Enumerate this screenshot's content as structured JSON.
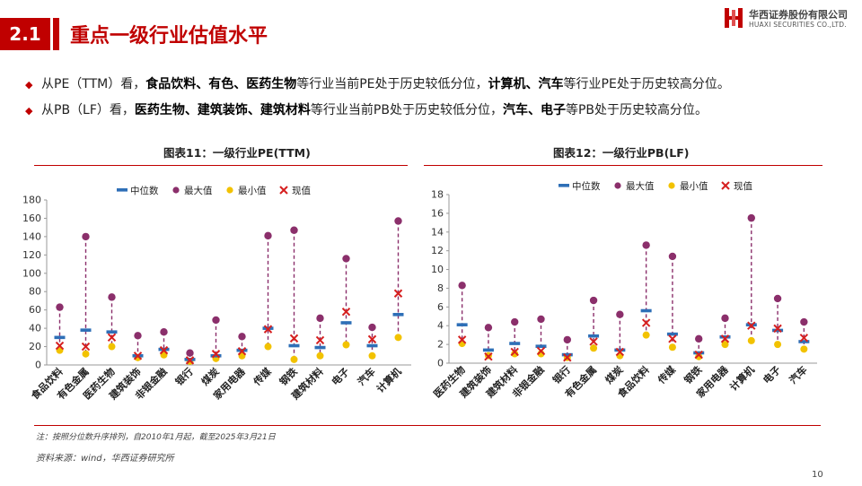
{
  "header": {
    "section_number": "2.1",
    "title": "重点一级行业估值水平",
    "logo_cn": "华西证券股份有限公司",
    "logo_en": "HUAXI SECURITIES CO.,LTD."
  },
  "bullets": [
    [
      {
        "t": "从PE（TTM）看，",
        "b": false
      },
      {
        "t": "食品饮料、有色、医药生物",
        "b": true
      },
      {
        "t": "等行业当前PE处于历史较低分位，",
        "b": false
      },
      {
        "t": "计算机、汽车",
        "b": true
      },
      {
        "t": "等行业PE处于历史较高分位。",
        "b": false
      }
    ],
    [
      {
        "t": "从PB（LF）看，",
        "b": false
      },
      {
        "t": "医药生物、建筑装饰、建筑材料",
        "b": true
      },
      {
        "t": "等行业当前PB处于历史较低分位，",
        "b": false
      },
      {
        "t": "汽车、电子",
        "b": true
      },
      {
        "t": "等PB处于历史较高分位。",
        "b": false
      }
    ]
  ],
  "legend_labels": [
    "中位数",
    "最大值",
    "最小值",
    "现值"
  ],
  "colors": {
    "median": "#2e6fb7",
    "max": "#8b2f6b",
    "min": "#f2c200",
    "current": "#d62020",
    "accent": "#c00000"
  },
  "chart_data": [
    {
      "type": "scatter",
      "title": "图表11：一级行业PE(TTM)",
      "legend_position": "top",
      "ylim": [
        0,
        180
      ],
      "yticks": [
        0,
        20,
        40,
        60,
        80,
        100,
        120,
        140,
        160,
        180
      ],
      "categories": [
        "食品饮料",
        "有色金属",
        "医药生物",
        "建筑装饰",
        "非银金融",
        "银行",
        "煤炭",
        "家用电器",
        "传媒",
        "钢铁",
        "建筑材料",
        "电子",
        "汽车",
        "计算机"
      ],
      "series": [
        {
          "name": "中位数",
          "values": [
            30,
            38,
            36,
            10,
            17,
            6,
            10,
            16,
            40,
            21,
            19,
            46,
            21,
            55
          ]
        },
        {
          "name": "最大值",
          "values": [
            63,
            140,
            74,
            32,
            36,
            13,
            49,
            31,
            141,
            147,
            51,
            116,
            41,
            157
          ]
        },
        {
          "name": "最小值",
          "values": [
            16,
            12,
            20,
            8,
            11,
            4,
            7,
            10,
            20,
            6,
            10,
            22,
            10,
            30
          ]
        },
        {
          "name": "现值",
          "values": [
            21,
            20,
            30,
            10,
            16,
            5,
            12,
            15,
            39,
            29,
            27,
            58,
            28,
            78
          ]
        }
      ]
    },
    {
      "type": "scatter",
      "title": "图表12：一级行业PB(LF)",
      "legend_position": "top",
      "ylim": [
        0,
        18
      ],
      "yticks": [
        0,
        2,
        4,
        6,
        8,
        10,
        12,
        14,
        16,
        18
      ],
      "categories": [
        "医药生物",
        "建筑装饰",
        "建筑材料",
        "非银金融",
        "银行",
        "有色金属",
        "煤炭",
        "食品饮料",
        "传媒",
        "钢铁",
        "家用电器",
        "计算机",
        "电子",
        "汽车"
      ],
      "series": [
        {
          "name": "中位数",
          "values": [
            4.1,
            1.4,
            2.1,
            1.8,
            0.9,
            2.9,
            1.4,
            5.6,
            3.1,
            1.1,
            2.8,
            4.1,
            3.5,
            2.3
          ]
        },
        {
          "name": "最大值",
          "values": [
            8.3,
            3.8,
            4.4,
            4.7,
            2.5,
            6.7,
            5.2,
            12.6,
            11.4,
            2.6,
            4.8,
            15.5,
            6.9,
            4.4
          ]
        },
        {
          "name": "最小值",
          "values": [
            2.1,
            0.8,
            1.0,
            1.0,
            0.6,
            1.6,
            0.8,
            3.0,
            1.7,
            0.7,
            2.0,
            2.4,
            2.0,
            1.5
          ]
        },
        {
          "name": "现值",
          "values": [
            2.5,
            0.7,
            1.2,
            1.3,
            0.6,
            2.3,
            1.2,
            4.3,
            2.6,
            0.9,
            2.6,
            4.0,
            3.7,
            2.7
          ]
        }
      ]
    }
  ],
  "note": "注：按照分位数升序排列，自2010年1月起，截至2025年3月21日",
  "source": "资料来源：wind，华西证券研究所",
  "page_number": "10"
}
